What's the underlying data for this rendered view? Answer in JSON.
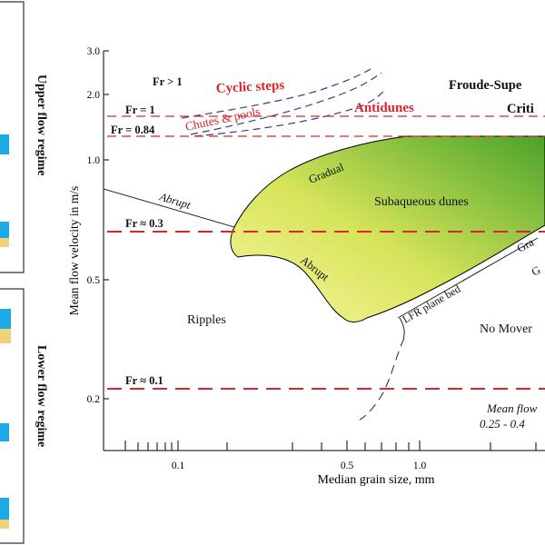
{
  "side_labels": {
    "upper": "Upper flow regime",
    "lower": "Lower flow regime"
  },
  "axes": {
    "xlabel": "Median grain size, mm",
    "ylabel": "Mean flow velocity in m/s",
    "x_ticks": [
      "0.1",
      "0.5",
      "1.0"
    ],
    "y_ticks": [
      "3.0",
      "2.0",
      "1.0",
      "0.5",
      "0.2"
    ]
  },
  "froude": {
    "fr_gt1": "Fr > 1",
    "fr_1": "Fr = 1",
    "fr_084": "Fr = 0.84",
    "fr_03": "Fr ≈ 0.3",
    "fr_01": "Fr ≈ 0.1"
  },
  "regions": {
    "cyclic_steps": "Cyclic steps",
    "chutes_pools": "Chutes & pools",
    "antidunes": "Antidunes",
    "supercritical": "Froude-Supe",
    "critical": "Criti",
    "subaqueous_dunes": "Subaqueous dunes",
    "ripples": "Ripples",
    "no_movement": "No Mover",
    "lfr_plane_bed": "LFR plane bed"
  },
  "boundary_labels": {
    "gradual": "Gradual",
    "abrupt_top": "Abrupt",
    "abrupt_bottom": "Abrupt",
    "gr_right": "Gra",
    "g_right": "G"
  },
  "mean_flow": {
    "line1": "Mean flow",
    "line2": "0.25 - 0.4"
  },
  "colors": {
    "red_line": "#d9262b",
    "blue_dash": "#2e3f8f",
    "dunes_light": "#f3ef8e",
    "dunes_dark": "#4fa82a",
    "red_text": "#d9262b"
  }
}
